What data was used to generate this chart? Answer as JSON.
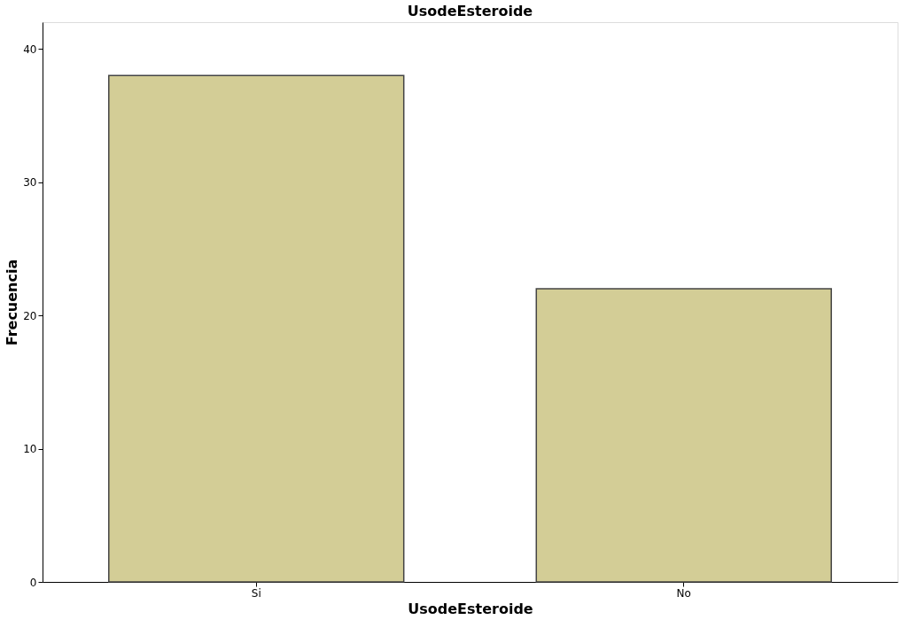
{
  "chart_data": {
    "type": "bar",
    "title": "UsodeEsteroide",
    "xlabel": "UsodeEsteroide",
    "ylabel": "Frecuencia",
    "categories": [
      "Si",
      "No"
    ],
    "values": [
      38,
      22
    ],
    "color": "#d3cd96",
    "ylim": [
      0,
      42
    ],
    "yticks": [
      0,
      10,
      20,
      30,
      40
    ],
    "grid": false
  }
}
